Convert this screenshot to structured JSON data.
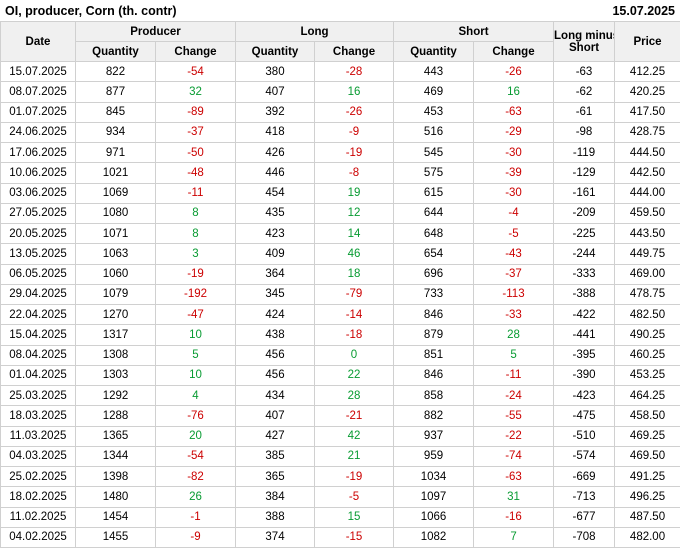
{
  "colors": {
    "negative": "#cc0000",
    "positive": "#089b32",
    "header_bg": "#f0f0f0",
    "border": "#d0d0d0"
  },
  "chart_data": {
    "type": "table",
    "title": "OI, producer, Corn (th. contr)",
    "report_date": "15.07.2025",
    "header": {
      "date": "Date",
      "producer": "Producer",
      "long": "Long",
      "short": "Short",
      "quantity": "Quantity",
      "change": "Change",
      "lms_lines": [
        "Long minus",
        "Short"
      ],
      "price": "Price"
    },
    "rows": [
      [
        "15.07.2025",
        "822",
        "-54",
        "380",
        "-28",
        "443",
        "-26",
        "-63",
        "412.25"
      ],
      [
        "08.07.2025",
        "877",
        "32",
        "407",
        "16",
        "469",
        "16",
        "-62",
        "420.25"
      ],
      [
        "01.07.2025",
        "845",
        "-89",
        "392",
        "-26",
        "453",
        "-63",
        "-61",
        "417.50"
      ],
      [
        "24.06.2025",
        "934",
        "-37",
        "418",
        "-9",
        "516",
        "-29",
        "-98",
        "428.75"
      ],
      [
        "17.06.2025",
        "971",
        "-50",
        "426",
        "-19",
        "545",
        "-30",
        "-119",
        "444.50"
      ],
      [
        "10.06.2025",
        "1021",
        "-48",
        "446",
        "-8",
        "575",
        "-39",
        "-129",
        "442.50"
      ],
      [
        "03.06.2025",
        "1069",
        "-11",
        "454",
        "19",
        "615",
        "-30",
        "-161",
        "444.00"
      ],
      [
        "27.05.2025",
        "1080",
        "8",
        "435",
        "12",
        "644",
        "-4",
        "-209",
        "459.50"
      ],
      [
        "20.05.2025",
        "1071",
        "8",
        "423",
        "14",
        "648",
        "-5",
        "-225",
        "443.50"
      ],
      [
        "13.05.2025",
        "1063",
        "3",
        "409",
        "46",
        "654",
        "-43",
        "-244",
        "449.75"
      ],
      [
        "06.05.2025",
        "1060",
        "-19",
        "364",
        "18",
        "696",
        "-37",
        "-333",
        "469.00"
      ],
      [
        "29.04.2025",
        "1079",
        "-192",
        "345",
        "-79",
        "733",
        "-113",
        "-388",
        "478.75"
      ],
      [
        "22.04.2025",
        "1270",
        "-47",
        "424",
        "-14",
        "846",
        "-33",
        "-422",
        "482.50"
      ],
      [
        "15.04.2025",
        "1317",
        "10",
        "438",
        "-18",
        "879",
        "28",
        "-441",
        "490.25"
      ],
      [
        "08.04.2025",
        "1308",
        "5",
        "456",
        "0",
        "851",
        "5",
        "-395",
        "460.25"
      ],
      [
        "01.04.2025",
        "1303",
        "10",
        "456",
        "22",
        "846",
        "-11",
        "-390",
        "453.25"
      ],
      [
        "25.03.2025",
        "1292",
        "4",
        "434",
        "28",
        "858",
        "-24",
        "-423",
        "464.25"
      ],
      [
        "18.03.2025",
        "1288",
        "-76",
        "407",
        "-21",
        "882",
        "-55",
        "-475",
        "458.50"
      ],
      [
        "11.03.2025",
        "1365",
        "20",
        "427",
        "42",
        "937",
        "-22",
        "-510",
        "469.25"
      ],
      [
        "04.03.2025",
        "1344",
        "-54",
        "385",
        "21",
        "959",
        "-74",
        "-574",
        "469.50"
      ],
      [
        "25.02.2025",
        "1398",
        "-82",
        "365",
        "-19",
        "1034",
        "-63",
        "-669",
        "491.25"
      ],
      [
        "18.02.2025",
        "1480",
        "26",
        "384",
        "-5",
        "1097",
        "31",
        "-713",
        "496.25"
      ],
      [
        "11.02.2025",
        "1454",
        "-1",
        "388",
        "15",
        "1066",
        "-16",
        "-677",
        "487.50"
      ],
      [
        "04.02.2025",
        "1455",
        "-9",
        "374",
        "-15",
        "1082",
        "7",
        "-708",
        "482.00"
      ]
    ]
  }
}
